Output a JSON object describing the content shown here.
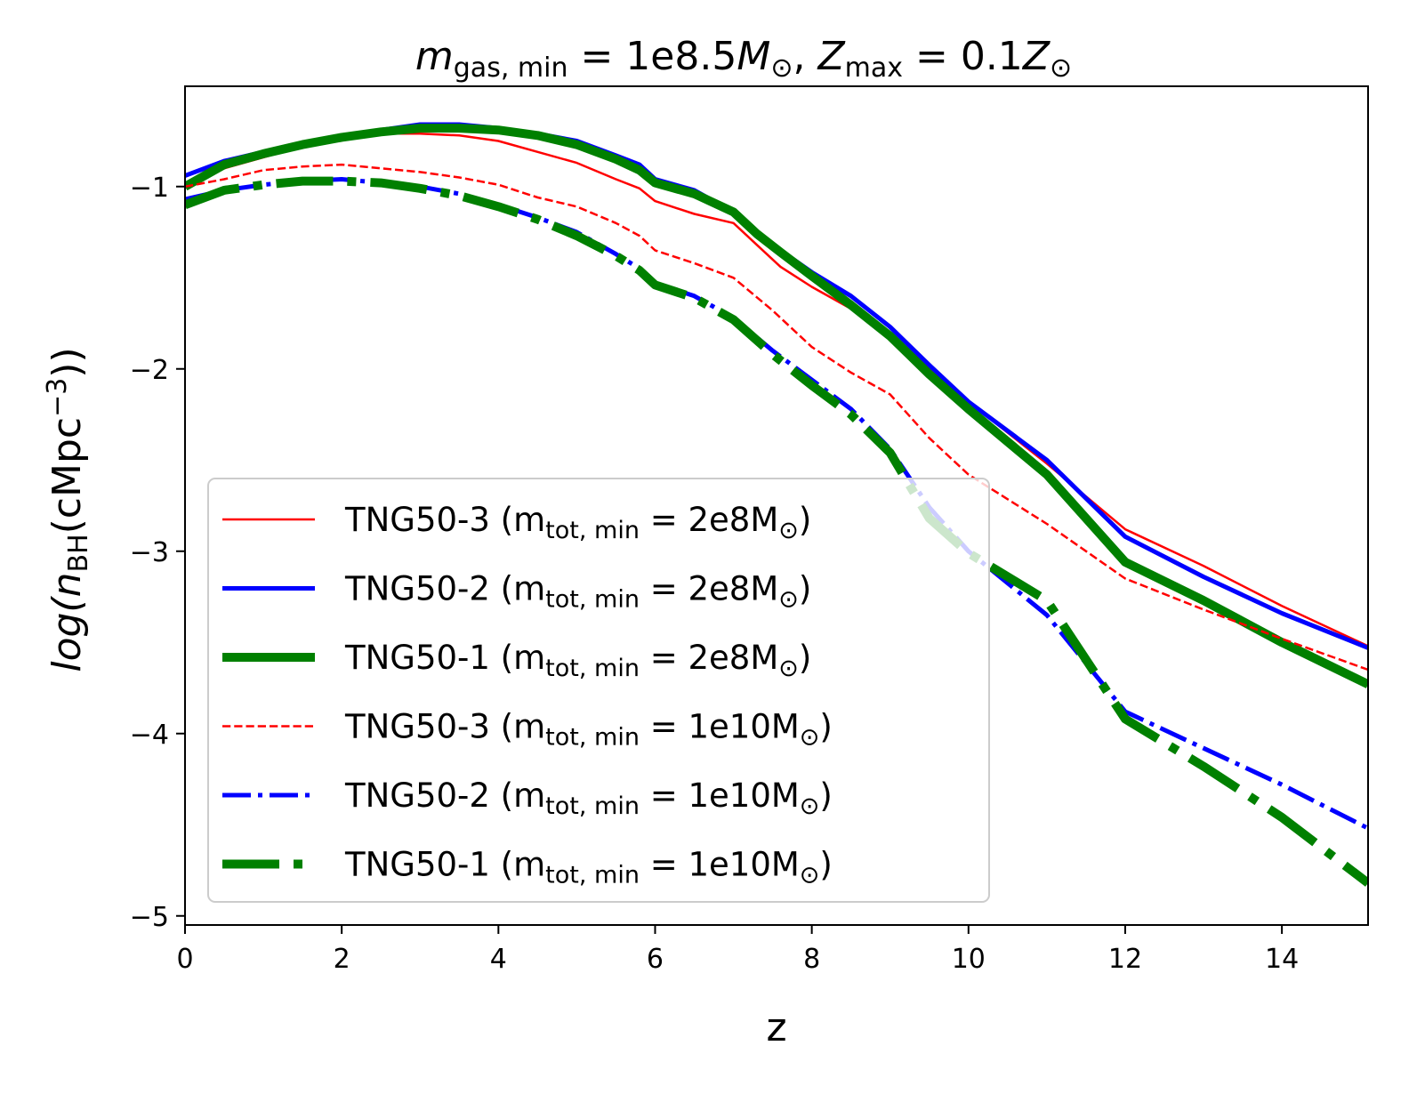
{
  "chart_data": {
    "type": "line",
    "title": {
      "m": "m",
      "m_sub": "gas, min",
      "eq1": " = 1e8.5",
      "M": "M",
      "sun": "⊙",
      "sep": ", ",
      "Z": "Z",
      "Z_sub": "max",
      "eq2": " = 0.1",
      "Z2": "Z",
      "sun2": "⊙"
    },
    "xlabel": "z",
    "ylabel": {
      "pre": "log(",
      "n": "n",
      "sub": "BH",
      "mid": "(cMpc",
      "sup": "−3",
      "post": "))"
    },
    "xlim": [
      0,
      15.1
    ],
    "ylim": [
      -5.05,
      -0.45
    ],
    "xticks": [
      0,
      2,
      4,
      6,
      8,
      10,
      12,
      14
    ],
    "xtick_labels": [
      "0",
      "2",
      "4",
      "6",
      "8",
      "10",
      "12",
      "14"
    ],
    "yticks": [
      -1,
      -2,
      -3,
      -4,
      -5
    ],
    "ytick_labels": [
      "−1",
      "−2",
      "−3",
      "−4",
      "−5"
    ],
    "legend_position": "lower-left",
    "series": [
      {
        "name": "TNG50-3 (m_tot,min = 2e8M⊙)",
        "label_main": "TNG50-3 (m",
        "label_sub": "tot, min",
        "label_eq": " = 2e8M",
        "label_sun": "⊙",
        "label_close": ")",
        "color": "#ff0000",
        "style": "solid",
        "width": 2.5,
        "x": [
          0,
          0.5,
          1,
          1.5,
          2,
          2.5,
          3,
          3.5,
          4,
          4.5,
          5,
          5.5,
          5.8,
          6,
          6.5,
          7,
          7.3,
          7.6,
          8,
          8.5,
          9,
          9.5,
          10,
          11,
          12,
          13,
          14,
          15.1
        ],
        "y": [
          -1.0,
          -0.9,
          -0.84,
          -0.78,
          -0.74,
          -0.71,
          -0.71,
          -0.72,
          -0.75,
          -0.81,
          -0.87,
          -0.96,
          -1.01,
          -1.08,
          -1.15,
          -1.2,
          -1.32,
          -1.44,
          -1.55,
          -1.67,
          -1.8,
          -2.0,
          -2.18,
          -2.52,
          -2.88,
          -3.08,
          -3.3,
          -3.52
        ]
      },
      {
        "name": "TNG50-2 (m_tot,min = 2e8M⊙)",
        "label_main": "TNG50-2 (m",
        "label_sub": "tot, min",
        "label_eq": " = 2e8M",
        "label_sun": "⊙",
        "label_close": ")",
        "color": "#0000ff",
        "style": "solid",
        "width": 5,
        "x": [
          0,
          0.5,
          1,
          1.5,
          2,
          2.5,
          3,
          3.5,
          4,
          4.5,
          5,
          5.5,
          5.8,
          6,
          6.5,
          7,
          7.3,
          7.6,
          8,
          8.5,
          9,
          9.5,
          10,
          11,
          12,
          13,
          14,
          15.1
        ],
        "y": [
          -0.94,
          -0.86,
          -0.81,
          -0.76,
          -0.72,
          -0.69,
          -0.66,
          -0.66,
          -0.68,
          -0.71,
          -0.75,
          -0.83,
          -0.88,
          -0.96,
          -1.02,
          -1.14,
          -1.26,
          -1.35,
          -1.47,
          -1.6,
          -1.77,
          -1.98,
          -2.18,
          -2.5,
          -2.92,
          -3.14,
          -3.34,
          -3.53
        ]
      },
      {
        "name": "TNG50-1 (m_tot,min = 2e8M⊙)",
        "label_main": "TNG50-1 (m",
        "label_sub": "tot, min",
        "label_eq": " = 2e8M",
        "label_sun": "⊙",
        "label_close": ")",
        "color": "#008000",
        "style": "solid",
        "width": 10,
        "x": [
          0,
          0.5,
          1,
          1.5,
          2,
          2.5,
          3,
          3.5,
          4,
          4.5,
          5,
          5.5,
          5.8,
          6,
          6.5,
          7,
          7.3,
          7.6,
          8,
          8.5,
          9,
          9.5,
          10,
          11,
          12,
          13,
          14,
          15.1
        ],
        "y": [
          -1.0,
          -0.88,
          -0.82,
          -0.77,
          -0.73,
          -0.7,
          -0.68,
          -0.68,
          -0.69,
          -0.72,
          -0.77,
          -0.85,
          -0.91,
          -0.98,
          -1.04,
          -1.14,
          -1.26,
          -1.36,
          -1.49,
          -1.65,
          -1.82,
          -2.03,
          -2.22,
          -2.58,
          -3.06,
          -3.27,
          -3.5,
          -3.73
        ]
      },
      {
        "name": "TNG50-3 (m_tot,min = 1e10M⊙)",
        "label_main": "TNG50-3 (m",
        "label_sub": "tot, min",
        "label_eq": " = 1e10M",
        "label_sun": "⊙",
        "label_close": ")",
        "color": "#ff0000",
        "style": "dashed",
        "width": 2.5,
        "x": [
          0,
          0.5,
          1,
          1.5,
          2,
          2.5,
          3,
          3.5,
          4,
          4.5,
          5,
          5.5,
          5.8,
          6,
          6.5,
          7,
          7.5,
          8,
          8.5,
          9,
          9.5,
          10,
          11,
          12,
          13,
          14,
          15.1
        ],
        "y": [
          -1.0,
          -0.96,
          -0.91,
          -0.89,
          -0.88,
          -0.9,
          -0.92,
          -0.95,
          -0.99,
          -1.06,
          -1.11,
          -1.2,
          -1.27,
          -1.35,
          -1.42,
          -1.5,
          -1.68,
          -1.88,
          -2.02,
          -2.14,
          -2.38,
          -2.58,
          -2.85,
          -3.15,
          -3.32,
          -3.48,
          -3.65
        ]
      },
      {
        "name": "TNG50-2 (m_tot,min = 1e10M⊙)",
        "label_main": "TNG50-2 (m",
        "label_sub": "tot, min",
        "label_eq": " = 1e10M",
        "label_sun": "⊙",
        "label_close": ")",
        "color": "#0000ff",
        "style": "dashdot",
        "width": 5,
        "x": [
          0,
          0.5,
          1,
          1.5,
          2,
          2.5,
          3,
          3.5,
          4,
          4.5,
          5,
          5.5,
          5.8,
          6,
          6.5,
          7,
          7.5,
          8,
          8.5,
          9,
          9.5,
          10,
          11,
          12,
          13,
          14,
          15.1
        ],
        "y": [
          -1.07,
          -1.02,
          -0.99,
          -0.97,
          -0.96,
          -0.98,
          -1.0,
          -1.04,
          -1.1,
          -1.17,
          -1.25,
          -1.37,
          -1.45,
          -1.53,
          -1.6,
          -1.72,
          -1.9,
          -2.06,
          -2.22,
          -2.44,
          -2.76,
          -3.0,
          -3.35,
          -3.88,
          -4.08,
          -4.28,
          -4.52
        ]
      },
      {
        "name": "TNG50-1 (m_tot,min = 1e10M⊙)",
        "label_main": "TNG50-1 (m",
        "label_sub": "tot, min",
        "label_eq": " = 1e10M",
        "label_sun": "⊙",
        "label_close": ")",
        "color": "#008000",
        "style": "dashdot",
        "width": 10,
        "x": [
          0,
          0.5,
          1,
          1.5,
          2,
          2.5,
          3,
          3.5,
          4,
          4.5,
          5,
          5.5,
          5.8,
          6,
          6.5,
          7,
          7.5,
          8,
          8.5,
          9,
          9.5,
          10,
          11,
          12,
          13,
          14,
          15.1
        ],
        "y": [
          -1.1,
          -1.02,
          -0.99,
          -0.97,
          -0.97,
          -0.98,
          -1.01,
          -1.05,
          -1.11,
          -1.18,
          -1.27,
          -1.38,
          -1.46,
          -1.54,
          -1.61,
          -1.73,
          -1.92,
          -2.09,
          -2.25,
          -2.46,
          -2.82,
          -3.01,
          -3.27,
          -3.92,
          -4.18,
          -4.46,
          -4.82
        ]
      }
    ]
  }
}
